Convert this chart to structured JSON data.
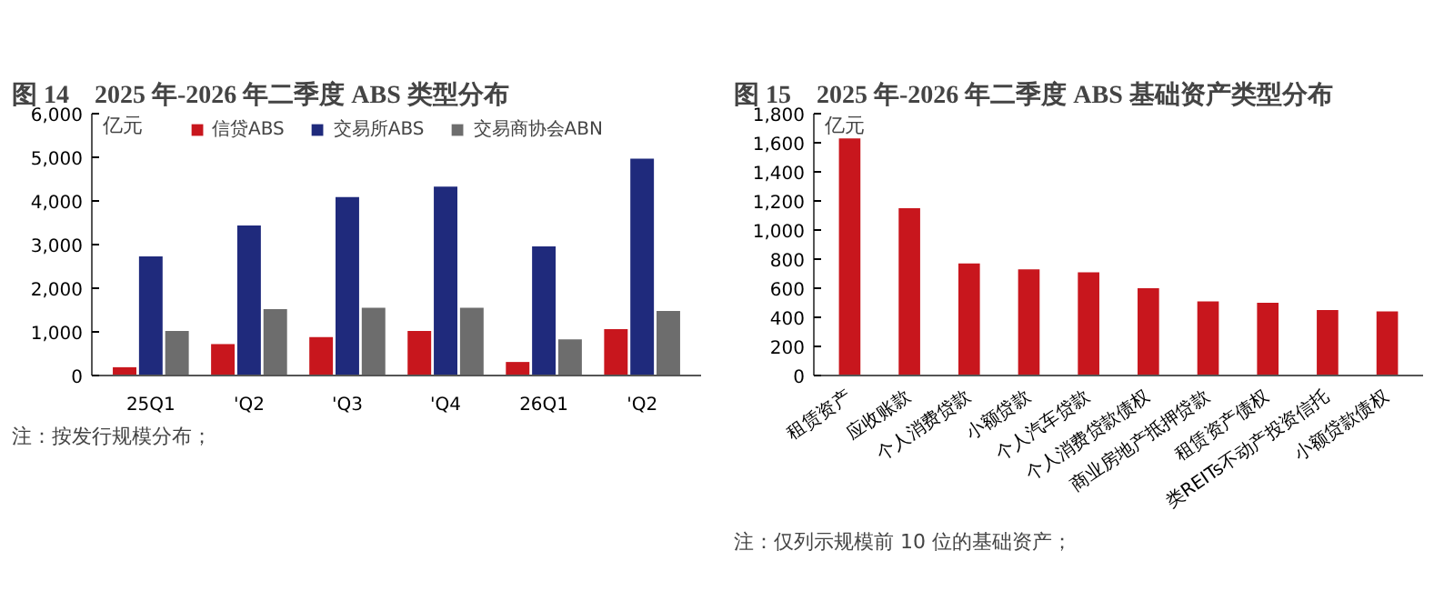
{
  "chart_data": [
    {
      "type": "bar",
      "title": "图 14　2025 年-2026 年二季度 ABS 类型分布",
      "ylabel": "亿元",
      "categories": [
        "25Q1",
        "'Q2",
        "'Q3",
        "'Q4",
        "26Q1",
        "'Q2"
      ],
      "series": [
        {
          "name": "信贷ABS",
          "color": "#c8161d",
          "values": [
            190,
            720,
            880,
            1020,
            310,
            1060
          ]
        },
        {
          "name": "交易所ABS",
          "color": "#1f2a7c",
          "values": [
            2730,
            3440,
            4090,
            4330,
            2960,
            4970
          ]
        },
        {
          "name": "交易商协会ABN",
          "color": "#6d6d6d",
          "values": [
            1020,
            1520,
            1550,
            1550,
            830,
            1480
          ]
        }
      ],
      "ylim": [
        0,
        6000
      ],
      "yticks": [
        0,
        {
          "value": 1000,
          "label": "1,000"
        },
        {
          "value": 2000,
          "label": "2,000"
        },
        {
          "value": 3000,
          "label": "3,000"
        },
        {
          "value": 4000,
          "label": "4,000"
        },
        {
          "value": 5000,
          "label": "5,000"
        },
        {
          "value": 6000,
          "label": "6,000"
        }
      ],
      "grid": false,
      "legend": "top",
      "annotations": [
        "注：按发行规模分布；"
      ]
    },
    {
      "type": "bar",
      "title": "图 15　2025 年-2026 年二季度 ABS 基础资产类型分布",
      "ylabel": "亿元",
      "categories": [
        "租赁资产",
        "应收账款",
        "个人消费贷款",
        "小额贷款",
        "个人汽车贷款",
        "个人消费贷款债权",
        "商业房地产抵押贷款",
        "租赁资产债权",
        "类REITs不动产投资信托",
        "小额贷款债权"
      ],
      "series": [
        {
          "color": "#c8161d",
          "values": [
            1630,
            1150,
            770,
            730,
            710,
            600,
            510,
            500,
            450,
            440
          ]
        }
      ],
      "ylim": [
        0,
        1800
      ],
      "yticks": [
        0,
        200,
        400,
        600,
        800,
        {
          "value": 1000,
          "label": "1,000"
        },
        {
          "value": 1200,
          "label": "1,200"
        },
        {
          "value": 1400,
          "label": "1,400"
        },
        {
          "value": 1600,
          "label": "1,600"
        },
        {
          "value": 1800,
          "label": "1,800"
        }
      ],
      "grid": false,
      "annotations": [
        "注：仅列示规模前 10 位的基础资产；"
      ]
    }
  ]
}
